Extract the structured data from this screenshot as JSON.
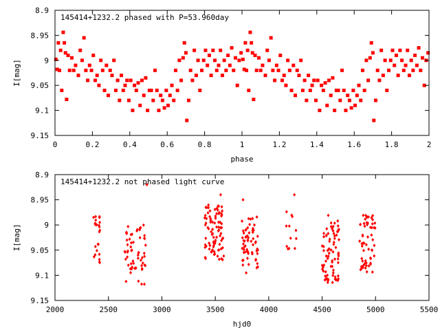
{
  "colors": {
    "points": "#ff0000",
    "axes": "#000000",
    "background": "#ffffff"
  },
  "chart_data": [
    {
      "type": "scatter",
      "title": "145414+1232.2 phased with P=53.960day",
      "xlabel": "phase",
      "ylabel": "I[mag]",
      "xlim": [
        0,
        2
      ],
      "ylim": [
        8.9,
        9.15
      ],
      "y_inverted": true,
      "xticks": [
        "0",
        "0.2",
        "0.4",
        "0.6",
        "0.8",
        "1",
        "1.2",
        "1.4",
        "1.6",
        "1.8",
        "2"
      ],
      "yticks": [
        "8.9",
        "8.95",
        "9",
        "9.05",
        "9.1",
        "9.15"
      ],
      "marker": "filled-square",
      "phase_period": 1,
      "points": [
        [
          0.005,
          8.998
        ],
        [
          0.012,
          9.018
        ],
        [
          0.018,
          8.965
        ],
        [
          0.024,
          9.02
        ],
        [
          0.03,
          8.98
        ],
        [
          0.036,
          9.06
        ],
        [
          0.044,
          8.944
        ],
        [
          0.05,
          8.965
        ],
        [
          0.056,
          8.985
        ],
        [
          0.062,
          9.078
        ],
        [
          0.07,
          8.99
        ],
        [
          0.078,
          9.02
        ],
        [
          0.09,
          8.995
        ],
        [
          0.1,
          9.02
        ],
        [
          0.11,
          9.01
        ],
        [
          0.125,
          9.03
        ],
        [
          0.135,
          8.98
        ],
        [
          0.145,
          9.0
        ],
        [
          0.155,
          8.955
        ],
        [
          0.165,
          9.02
        ],
        [
          0.175,
          9.04
        ],
        [
          0.185,
          9.01
        ],
        [
          0.195,
          9.02
        ],
        [
          0.205,
          8.99
        ],
        [
          0.215,
          9.04
        ],
        [
          0.225,
          9.03
        ],
        [
          0.235,
          9.05
        ],
        [
          0.245,
          9.0
        ],
        [
          0.255,
          9.02
        ],
        [
          0.265,
          9.06
        ],
        [
          0.275,
          9.01
        ],
        [
          0.285,
          9.07
        ],
        [
          0.295,
          9.02
        ],
        [
          0.305,
          9.03
        ],
        [
          0.315,
          9.0
        ],
        [
          0.325,
          9.06
        ],
        [
          0.335,
          9.04
        ],
        [
          0.345,
          9.08
        ],
        [
          0.355,
          9.03
        ],
        [
          0.365,
          9.06
        ],
        [
          0.375,
          9.05
        ],
        [
          0.385,
          9.04
        ],
        [
          0.395,
          9.08
        ],
        [
          0.405,
          9.04
        ],
        [
          0.415,
          9.1
        ],
        [
          0.425,
          9.05
        ],
        [
          0.435,
          9.06
        ],
        [
          0.445,
          9.045
        ],
        [
          0.455,
          9.09
        ],
        [
          0.465,
          9.04
        ],
        [
          0.475,
          9.07
        ],
        [
          0.485,
          9.035
        ],
        [
          0.495,
          9.1
        ],
        [
          0.505,
          9.06
        ],
        [
          0.515,
          9.06
        ],
        [
          0.525,
          9.08
        ],
        [
          0.535,
          9.02
        ],
        [
          0.545,
          9.06
        ],
        [
          0.555,
          9.1
        ],
        [
          0.565,
          9.07
        ],
        [
          0.575,
          9.08
        ],
        [
          0.585,
          9.095
        ],
        [
          0.595,
          9.06
        ],
        [
          0.605,
          9.09
        ],
        [
          0.615,
          9.07
        ],
        [
          0.625,
          9.05
        ],
        [
          0.635,
          9.08
        ],
        [
          0.645,
          9.02
        ],
        [
          0.655,
          9.06
        ],
        [
          0.665,
          9.0
        ],
        [
          0.675,
          9.04
        ],
        [
          0.685,
          8.995
        ],
        [
          0.692,
          8.965
        ],
        [
          0.7,
          8.985
        ],
        [
          0.705,
          9.12
        ],
        [
          0.715,
          9.08
        ],
        [
          0.725,
          9.02
        ],
        [
          0.735,
          9.04
        ],
        [
          0.745,
          8.98
        ],
        [
          0.755,
          9.03
        ],
        [
          0.765,
          9.0
        ],
        [
          0.775,
          9.06
        ],
        [
          0.785,
          9.02
        ],
        [
          0.795,
          9.0
        ],
        [
          0.805,
          8.98
        ],
        [
          0.815,
          9.01
        ],
        [
          0.825,
          8.99
        ],
        [
          0.835,
          9.03
        ],
        [
          0.845,
          8.98
        ],
        [
          0.855,
          9.0
        ],
        [
          0.865,
          9.02
        ],
        [
          0.875,
          9.01
        ],
        [
          0.885,
          8.98
        ],
        [
          0.895,
          9.03
        ],
        [
          0.905,
          9.0
        ],
        [
          0.915,
          9.02
        ],
        [
          0.925,
          8.99
        ],
        [
          0.935,
          9.01
        ],
        [
          0.945,
          8.975
        ],
        [
          0.955,
          9.02
        ],
        [
          0.965,
          8.995
        ],
        [
          0.975,
          9.05
        ],
        [
          0.985,
          9.0
        ],
        [
          0.995,
          8.985
        ]
      ]
    },
    {
      "type": "scatter",
      "title": "145414+1232.2 not phased light curve",
      "xlabel": "hjd0",
      "ylabel": "I[mag]",
      "xlim": [
        2000,
        5500
      ],
      "ylim": [
        8.9,
        9.15
      ],
      "y_inverted": true,
      "xticks": [
        "2000",
        "2500",
        "3000",
        "3500",
        "4000",
        "4500",
        "5000",
        "5500"
      ],
      "yticks": [
        "8.9",
        "8.95",
        "9",
        "9.05",
        "9.1",
        "9.15"
      ],
      "marker": "small-diamond",
      "clusters": [
        {
          "x_range": [
            2360,
            2420
          ],
          "y_range": [
            8.98,
            9.08
          ],
          "n": 24
        },
        {
          "x_range": [
            2650,
            2860
          ],
          "y_range": [
            9.0,
            9.12
          ],
          "n": 60
        },
        {
          "x_range": [
            3400,
            3580
          ],
          "y_range": [
            8.96,
            9.07
          ],
          "n": 90
        },
        {
          "x_range": [
            3750,
            3900
          ],
          "y_range": [
            8.98,
            9.1
          ],
          "n": 60
        },
        {
          "x_range": [
            4160,
            4260
          ],
          "y_range": [
            8.97,
            9.05
          ],
          "n": 12
        },
        {
          "x_range": [
            4500,
            4660
          ],
          "y_range": [
            8.98,
            9.12
          ],
          "n": 80
        },
        {
          "x_range": [
            4850,
            5000
          ],
          "y_range": [
            8.98,
            9.1
          ],
          "n": 60
        }
      ],
      "outliers": [
        [
          2860,
          8.92
        ],
        [
          3550,
          8.94
        ],
        [
          3760,
          8.95
        ],
        [
          4240,
          8.94
        ]
      ]
    }
  ]
}
